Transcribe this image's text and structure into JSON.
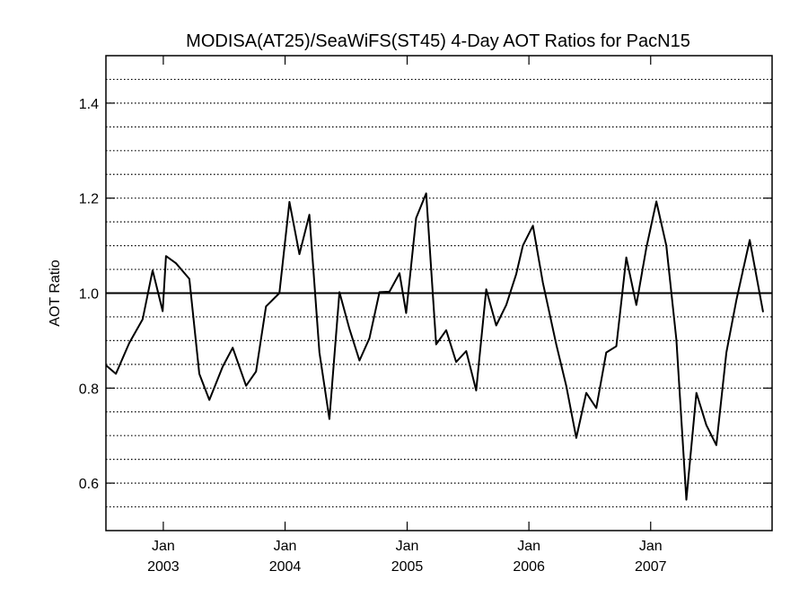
{
  "chart_data": {
    "type": "line",
    "title": "MODISA(AT25)/SeaWiFS(ST45) 4-Day AOT Ratios for PacN15",
    "xlabel": "",
    "ylabel": "AOT Ratio",
    "xlim": [
      "2002-07-13",
      "2007-12-31"
    ],
    "ylim": [
      0.5,
      1.5
    ],
    "yticks": [
      0.6,
      0.8,
      1.0,
      1.2,
      1.4
    ],
    "ytick_labels": [
      "0.6",
      "0.8",
      "1.0",
      "1.2",
      "1.4"
    ],
    "minor_gridlines": [
      0.55,
      0.6,
      0.65,
      0.7,
      0.75,
      0.8,
      0.85,
      0.9,
      0.95,
      1.05,
      1.1,
      1.15,
      1.2,
      1.25,
      1.3,
      1.35,
      1.4,
      1.45
    ],
    "grid": "horizontal dotted",
    "reference_line": 1.0,
    "xticks": [
      {
        "date": "2003-01-01",
        "line1": "Jan",
        "line2": "2003"
      },
      {
        "date": "2004-01-01",
        "line1": "Jan",
        "line2": "2004"
      },
      {
        "date": "2005-01-01",
        "line1": "Jan",
        "line2": "2005"
      },
      {
        "date": "2006-01-01",
        "line1": "Jan",
        "line2": "2006"
      },
      {
        "date": "2007-01-01",
        "line1": "Jan",
        "line2": "2007"
      }
    ],
    "series": [
      {
        "points": [
          [
            "2002-07-13",
            0.848
          ],
          [
            "2002-08-12",
            0.83
          ],
          [
            "2002-09-21",
            0.895
          ],
          [
            "2002-10-31",
            0.945
          ],
          [
            "2002-11-30",
            1.048
          ],
          [
            "2002-12-30",
            0.962
          ],
          [
            "2003-01-09",
            1.078
          ],
          [
            "2003-02-08",
            1.063
          ],
          [
            "2003-03-20",
            1.03
          ],
          [
            "2003-04-19",
            0.83
          ],
          [
            "2003-05-19",
            0.775
          ],
          [
            "2003-06-28",
            0.845
          ],
          [
            "2003-07-28",
            0.885
          ],
          [
            "2003-09-06",
            0.805
          ],
          [
            "2003-10-06",
            0.835
          ],
          [
            "2003-11-05",
            0.972
          ],
          [
            "2003-12-15",
            1.0
          ],
          [
            "2004-01-14",
            1.192
          ],
          [
            "2004-02-13",
            1.082
          ],
          [
            "2004-03-14",
            1.165
          ],
          [
            "2004-04-13",
            0.875
          ],
          [
            "2004-05-13",
            0.735
          ],
          [
            "2004-06-12",
            1.002
          ],
          [
            "2004-07-12",
            0.925
          ],
          [
            "2004-08-11",
            0.858
          ],
          [
            "2004-09-10",
            0.905
          ],
          [
            "2004-10-10",
            1.002
          ],
          [
            "2004-11-09",
            1.003
          ],
          [
            "2004-12-09",
            1.042
          ],
          [
            "2004-12-29",
            0.958
          ],
          [
            "2005-01-28",
            1.158
          ],
          [
            "2005-02-27",
            1.21
          ],
          [
            "2005-03-29",
            0.892
          ],
          [
            "2005-04-28",
            0.922
          ],
          [
            "2005-05-28",
            0.855
          ],
          [
            "2005-06-27",
            0.878
          ],
          [
            "2005-07-27",
            0.795
          ],
          [
            "2005-08-26",
            1.008
          ],
          [
            "2005-09-25",
            0.932
          ],
          [
            "2005-10-25",
            0.975
          ],
          [
            "2005-11-24",
            1.04
          ],
          [
            "2005-12-14",
            1.1
          ],
          [
            "2006-01-13",
            1.142
          ],
          [
            "2006-02-12",
            1.022
          ],
          [
            "2006-03-24",
            0.892
          ],
          [
            "2006-04-23",
            0.805
          ],
          [
            "2006-05-23",
            0.695
          ],
          [
            "2006-06-22",
            0.79
          ],
          [
            "2006-07-22",
            0.758
          ],
          [
            "2006-08-21",
            0.875
          ],
          [
            "2006-09-20",
            0.888
          ],
          [
            "2006-10-20",
            1.075
          ],
          [
            "2006-11-19",
            0.975
          ],
          [
            "2006-12-19",
            1.095
          ],
          [
            "2007-01-18",
            1.193
          ],
          [
            "2007-02-17",
            1.1
          ],
          [
            "2007-03-19",
            0.902
          ],
          [
            "2007-04-18",
            0.565
          ],
          [
            "2007-05-18",
            0.79
          ],
          [
            "2007-06-17",
            0.722
          ],
          [
            "2007-07-17",
            0.68
          ],
          [
            "2007-08-16",
            0.875
          ],
          [
            "2007-09-15",
            0.985
          ],
          [
            "2007-10-25",
            1.112
          ],
          [
            "2007-12-04",
            0.96
          ]
        ]
      }
    ]
  }
}
